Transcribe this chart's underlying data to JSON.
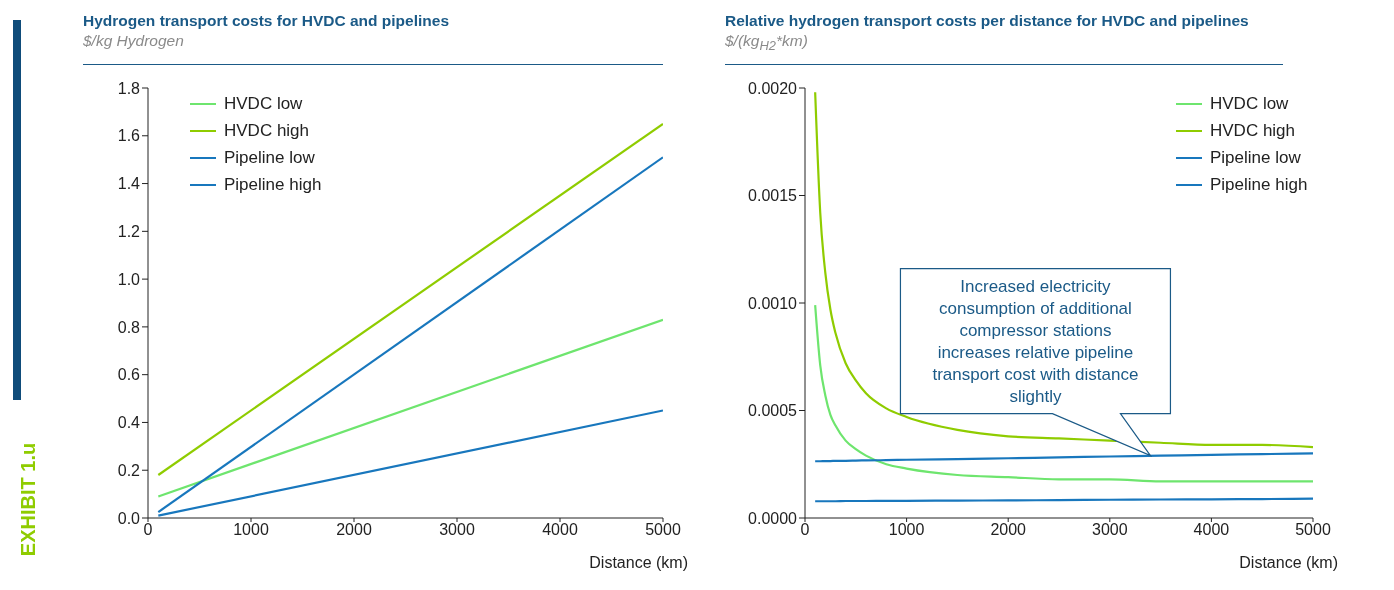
{
  "chart_data": [
    {
      "type": "line",
      "title": "Hydrogen transport costs for HVDC and pipelines",
      "subtitle": "$/kg Hydrogen",
      "xlabel": "Distance (km)",
      "x": [
        100,
        5000
      ],
      "series": [
        {
          "name": "HVDC low",
          "color": "#6ee56e",
          "values": [
            0.09,
            0.83
          ]
        },
        {
          "name": "HVDC high",
          "color": "#8fcc00",
          "values": [
            0.18,
            1.65
          ]
        },
        {
          "name": "Pipeline low",
          "color": "#1877bd",
          "values": [
            0.01,
            0.45
          ]
        },
        {
          "name": "Pipeline high",
          "color": "#1877bd",
          "values": [
            0.025,
            1.51
          ]
        }
      ],
      "xlim": [
        0,
        5000
      ],
      "xticks": [
        0,
        1000,
        2000,
        3000,
        4000,
        5000
      ],
      "ylim": [
        0,
        1.8
      ],
      "yticks": [
        {
          "value": 0,
          "label": "0.0"
        },
        0.2,
        0.4,
        0.6,
        0.8,
        {
          "value": 1,
          "label": "1.0"
        },
        1.2,
        1.4,
        1.6,
        1.8
      ],
      "legend": "top left",
      "annotations": [
        "EXHIBIT 1.u"
      ]
    },
    {
      "type": "line",
      "title": "Relative hydrogen transport costs per distance for HVDC and pipelines",
      "subtitle": "$/(kg$_{H2}$*km)",
      "xlabel": "Distance (km)",
      "x": [
        100,
        150,
        200,
        250,
        300,
        400,
        500,
        600,
        800,
        1000,
        1500,
        2000,
        2500,
        3000,
        3500,
        4000,
        4500,
        5000
      ],
      "series": [
        {
          "name": "HVDC low",
          "color": "#6ee56e",
          "values": [
            0.00099,
            0.00071,
            0.00057,
            0.00048,
            0.00043,
            0.00036,
            0.00032,
            0.00029,
            0.00025,
            0.00023,
            0.0002,
            0.00019,
            0.00018,
            0.00018,
            0.00017,
            0.00017,
            0.00017,
            0.00017
          ]
        },
        {
          "name": "HVDC high",
          "color": "#8fcc00",
          "values": [
            0.00198,
            0.00142,
            0.00114,
            0.00097,
            0.00086,
            0.00072,
            0.00064,
            0.00058,
            0.00051,
            0.00047,
            0.00041,
            0.00038,
            0.00037,
            0.00036,
            0.00035,
            0.00034,
            0.00034,
            0.00033
          ]
        },
        {
          "name": "Pipeline low",
          "color": "#1877bd",
          "values": [
            7.8e-05,
            7.8e-05,
            7.8e-05,
            7.8e-05,
            7.8e-05,
            7.9e-05,
            7.9e-05,
            7.9e-05,
            8e-05,
            8e-05,
            8.1e-05,
            8.2e-05,
            8.3e-05,
            8.5e-05,
            8.6e-05,
            8.7e-05,
            8.8e-05,
            9e-05
          ]
        },
        {
          "name": "Pipeline high",
          "color": "#1877bd",
          "values": [
            0.000264,
            0.000264,
            0.000265,
            0.000265,
            0.000266,
            0.000266,
            0.000267,
            0.000268,
            0.000269,
            0.000271,
            0.000274,
            0.000278,
            0.000282,
            0.000286,
            0.00029,
            0.000294,
            0.000297,
            0.000301
          ]
        }
      ],
      "xlim": [
        0,
        5000
      ],
      "xticks": [
        0,
        1000,
        2000,
        3000,
        4000,
        5000
      ],
      "ylim": [
        0,
        0.002
      ],
      "yticks": [
        {
          "value": 0,
          "label": "0.0000"
        },
        {
          "value": 0.0005,
          "label": "0.0005"
        },
        {
          "value": 0.001,
          "label": "0.0010"
        },
        {
          "value": 0.0015,
          "label": "0.0015"
        },
        {
          "value": 0.002,
          "label": "0.0020"
        }
      ],
      "legend": "top right",
      "annotations": [
        {
          "text": "Increased electricity consumption of additional compressor stations increases relative pipeline transport cost with distance slightly",
          "x": 3400,
          "y": 0.00029
        }
      ]
    }
  ]
}
